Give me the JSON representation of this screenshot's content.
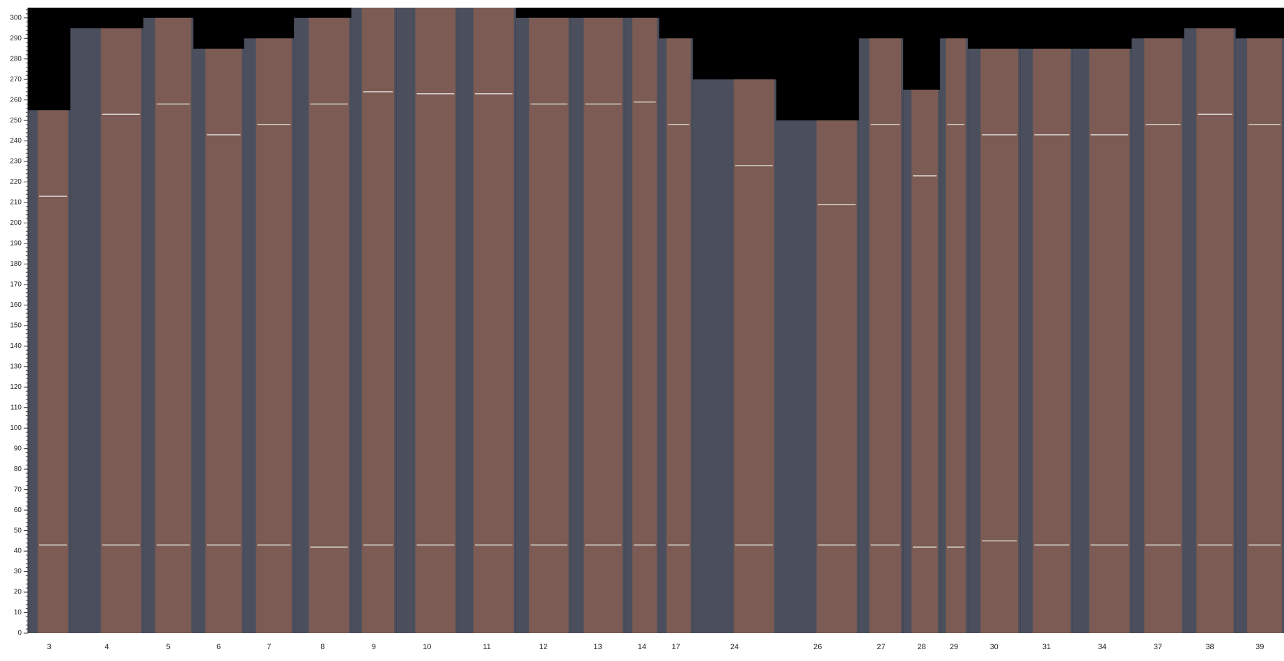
{
  "chart_data": {
    "type": "bar",
    "categories": [
      "3",
      "4",
      "5",
      "6",
      "7",
      "8",
      "9",
      "10",
      "11",
      "12",
      "13",
      "14",
      "17",
      "24",
      "26",
      "27",
      "28",
      "29",
      "30",
      "31",
      "34",
      "37",
      "38",
      "39"
    ],
    "values": [
      255,
      295,
      300,
      285,
      290,
      300,
      305,
      305,
      305,
      300,
      300,
      300,
      290,
      270,
      250,
      290,
      265,
      290,
      285,
      285,
      285,
      290,
      295,
      290
    ],
    "upper_cut": [
      213,
      253,
      258,
      243,
      248,
      258,
      264,
      263,
      263,
      258,
      258,
      259,
      248,
      228,
      209,
      248,
      223,
      248,
      243,
      243,
      243,
      248,
      253,
      248
    ],
    "lower_cut": [
      43,
      43,
      43,
      43,
      43,
      42,
      43,
      43,
      43,
      43,
      43,
      43,
      43,
      43,
      43,
      43,
      42,
      42,
      45,
      43,
      43,
      43,
      43,
      43
    ],
    "color": "#4b4f5d",
    "wood_color": "#7b5b53",
    "cut_color": "#d9d4d2",
    "background": "#000000",
    "ylim": [
      0,
      305
    ],
    "yticks": [
      0,
      10,
      20,
      30,
      40,
      50,
      60,
      70,
      80,
      90,
      100,
      110,
      120,
      130,
      140,
      150,
      160,
      170,
      180,
      190,
      200,
      210,
      220,
      230,
      240,
      250,
      260,
      270,
      280,
      290,
      300
    ]
  }
}
